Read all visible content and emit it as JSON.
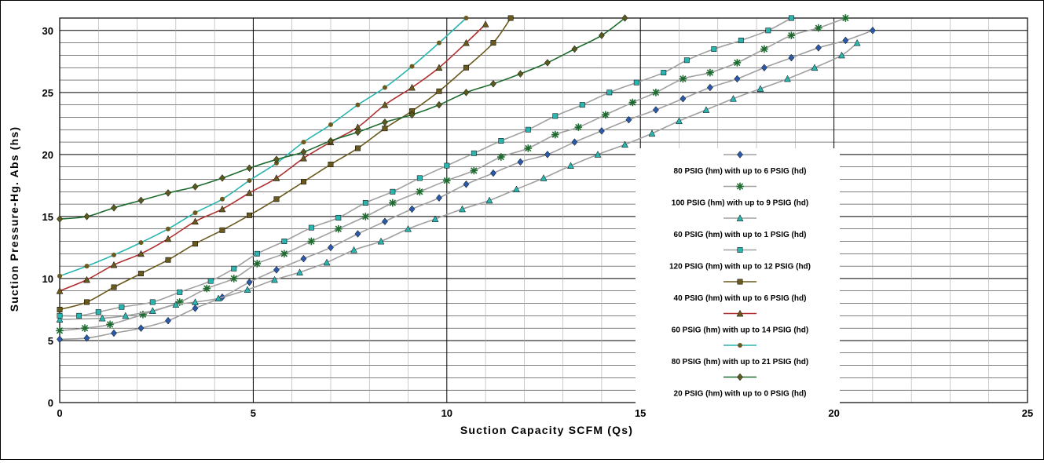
{
  "chart_data": {
    "type": "line",
    "title": "",
    "xlabel": "Suction Capacity SCFM (Qs)",
    "ylabel": "Suction Pressure-Hg. Abs (hs)",
    "xlim": [
      0,
      25
    ],
    "ylim": [
      0,
      31
    ],
    "x_ticks": [
      0,
      5,
      10,
      15,
      20,
      25
    ],
    "y_ticks": [
      0,
      5,
      10,
      15,
      20,
      25,
      30
    ],
    "grid": true,
    "legend_position": "right",
    "series": [
      {
        "name": "80 PSIG (hm) with up to 6 PSIG (hd)",
        "color": "#a0a0a0",
        "marker": "diamond",
        "marker_color": "#2a5aa8",
        "x": [
          0,
          0.7,
          1.4,
          2.1,
          2.8,
          3.5,
          4.2,
          4.9,
          5.6,
          6.3,
          7.0,
          7.7,
          8.4,
          9.1,
          9.8,
          10.5,
          11.2,
          11.9,
          12.6,
          13.3,
          14.0,
          14.7,
          15.4,
          16.1,
          16.8,
          17.5,
          18.2,
          18.9,
          19.6,
          20.3,
          21.0
        ],
        "y": [
          5.1,
          5.2,
          5.6,
          6.0,
          6.6,
          7.6,
          8.5,
          9.7,
          10.7,
          11.6,
          12.5,
          13.6,
          14.6,
          15.6,
          16.5,
          17.6,
          18.5,
          19.4,
          20.0,
          21.0,
          21.9,
          22.8,
          23.6,
          24.5,
          25.4,
          26.1,
          27.0,
          27.8,
          28.6,
          29.2,
          30.0
        ]
      },
      {
        "name": "100 PSIG (hm) with up to 9 PSIG (hd)",
        "color": "#a0a0a0",
        "marker": "star",
        "marker_color": "#1d6b2f",
        "x": [
          0,
          0.65,
          1.3,
          2.15,
          3.1,
          3.8,
          4.5,
          5.1,
          5.8,
          6.5,
          7.2,
          7.9,
          8.6,
          9.3,
          10.0,
          10.7,
          11.4,
          12.1,
          12.8,
          13.4,
          14.1,
          14.8,
          15.4,
          16.1,
          16.8,
          17.5,
          18.2,
          18.9,
          19.6,
          20.3
        ],
        "y": [
          5.8,
          6.0,
          6.3,
          7.1,
          8.1,
          9.2,
          10.0,
          11.2,
          12.0,
          13.0,
          14.0,
          15.0,
          16.1,
          17.0,
          17.9,
          18.7,
          19.8,
          20.5,
          21.6,
          22.2,
          23.2,
          24.2,
          25.0,
          26.1,
          26.6,
          27.4,
          28.5,
          29.6,
          30.2,
          31.0
        ]
      },
      {
        "name": "60 PSIG (hm) with up to 1 PSIG (hd)",
        "color": "#a0a0a0",
        "marker": "triangle",
        "marker_color": "#2ab5b0",
        "x": [
          0,
          1.1,
          1.7,
          2.4,
          3.0,
          3.5,
          4.1,
          4.85,
          5.55,
          6.2,
          6.9,
          7.6,
          8.3,
          9.0,
          9.7,
          10.4,
          11.1,
          11.8,
          12.5,
          13.2,
          13.9,
          14.6,
          15.3,
          16.0,
          16.7,
          17.4,
          18.1,
          18.8,
          19.5,
          20.2,
          20.6
        ],
        "y": [
          6.7,
          6.8,
          7.0,
          7.4,
          7.9,
          8.1,
          8.4,
          9.1,
          9.9,
          10.5,
          11.3,
          12.3,
          13.0,
          14.0,
          14.8,
          15.6,
          16.3,
          17.2,
          18.1,
          19.1,
          20.0,
          20.8,
          21.7,
          22.7,
          23.6,
          24.5,
          25.3,
          26.1,
          27.0,
          28.0,
          29.0
        ]
      },
      {
        "name": "120 PSIG (hm) with up to 12 PSIG (hd)",
        "color": "#a0a0a0",
        "marker": "square",
        "marker_color": "#2ab5b0",
        "x": [
          0,
          0.5,
          1.0,
          1.6,
          2.4,
          3.1,
          3.9,
          4.5,
          5.1,
          5.8,
          6.5,
          7.2,
          7.9,
          8.6,
          9.3,
          10.0,
          10.7,
          11.4,
          12.1,
          12.8,
          13.5,
          14.2,
          14.9,
          15.6,
          16.2,
          16.9,
          17.6,
          18.3,
          18.9
        ],
        "y": [
          7.0,
          7.0,
          7.3,
          7.7,
          8.1,
          8.9,
          9.8,
          10.8,
          12.0,
          13.0,
          14.1,
          14.9,
          16.1,
          17.0,
          18.1,
          19.1,
          20.1,
          21.1,
          22.0,
          23.1,
          24.0,
          25.0,
          25.8,
          26.6,
          27.6,
          28.5,
          29.2,
          30.0,
          31.0
        ]
      },
      {
        "name": "40 PSIG (hm) with up to 6 PSIG (hd)",
        "color": "#6a5a1e",
        "marker": "square",
        "marker_color": "#6a5a1e",
        "x": [
          0,
          0.7,
          1.4,
          2.1,
          2.8,
          3.5,
          4.2,
          4.9,
          5.6,
          6.3,
          7.0,
          7.7,
          8.4,
          9.1,
          9.8,
          10.5,
          11.2,
          11.65
        ],
        "y": [
          7.5,
          8.1,
          9.3,
          10.4,
          11.5,
          12.8,
          13.9,
          15.1,
          16.4,
          17.8,
          19.2,
          20.5,
          22.1,
          23.5,
          25.1,
          27.0,
          29.0,
          31.0
        ]
      },
      {
        "name": "60 PSIG (hm) with up to 14 PSIG (hd)",
        "color": "#b03030",
        "marker": "triangle",
        "marker_color": "#6a5a1e",
        "x": [
          0,
          0.7,
          1.4,
          2.1,
          2.8,
          3.5,
          4.2,
          4.9,
          5.6,
          6.3,
          7.0,
          7.7,
          8.4,
          9.1,
          9.8,
          10.5,
          11.0
        ],
        "y": [
          9.0,
          9.9,
          11.1,
          12.0,
          13.2,
          14.6,
          15.6,
          16.9,
          18.1,
          19.7,
          21.0,
          22.2,
          24.0,
          25.4,
          27.0,
          29.0,
          30.5
        ]
      },
      {
        "name": "80 PSIG (hm) with up to 21 PSIG (hd)",
        "color": "#2ab5b0",
        "marker": "circle",
        "marker_color": "#6a5a1e",
        "x": [
          0,
          0.7,
          1.4,
          2.1,
          2.8,
          3.5,
          4.2,
          4.9,
          5.6,
          6.3,
          7.0,
          7.7,
          8.4,
          9.1,
          9.8,
          10.5
        ],
        "y": [
          10.2,
          11.0,
          11.9,
          12.9,
          14.0,
          15.3,
          16.4,
          17.9,
          19.3,
          21.0,
          22.4,
          24.0,
          25.4,
          27.1,
          29.0,
          31.0
        ]
      },
      {
        "name": "20 PSIG (hm) with up to 0 PSIG (hd)",
        "color": "#1d6b2f",
        "marker": "diamond",
        "marker_color": "#5a5a1e",
        "x": [
          0,
          0.7,
          1.4,
          2.1,
          2.8,
          3.5,
          4.2,
          4.9,
          5.6,
          6.3,
          7.0,
          7.7,
          8.4,
          9.1,
          9.8,
          10.5,
          11.2,
          11.9,
          12.6,
          13.3,
          14.0,
          14.6
        ],
        "y": [
          14.8,
          15.0,
          15.7,
          16.3,
          16.9,
          17.4,
          18.1,
          18.9,
          19.6,
          20.2,
          21.1,
          21.8,
          22.6,
          23.2,
          24.0,
          25.0,
          25.7,
          26.5,
          27.4,
          28.5,
          29.6,
          31.0
        ]
      }
    ]
  }
}
